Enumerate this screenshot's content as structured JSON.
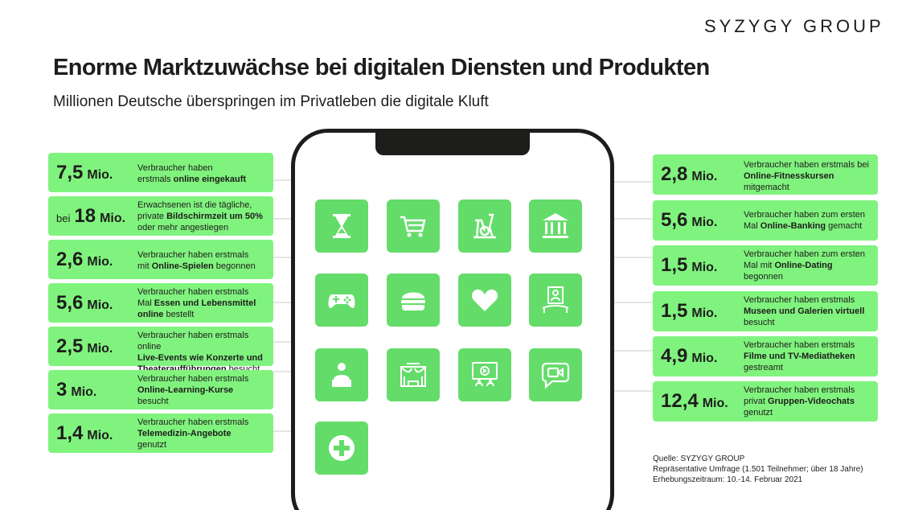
{
  "brand": "SYZYGY GROUP",
  "title": "Enorme Marktzuwächse bei digitalen Diensten und Produkten",
  "subtitle": "Millionen Deutsche überspringen im Privatleben die digitale Kluft",
  "left_cards": [
    {
      "pre": "",
      "value": "7,5",
      "unit": "Mio.",
      "desc": [
        "Verbraucher haben",
        "erstmals <b>online eingekauft</b>"
      ]
    },
    {
      "pre": "bei",
      "value": "18",
      "unit": "Mio.",
      "desc": [
        "Erwachsenen ist die tägliche,",
        "private <b>Bildschirmzeit um 50%</b>",
        "oder mehr angestiegen"
      ]
    },
    {
      "pre": "",
      "value": "2,6",
      "unit": "Mio.",
      "desc": [
        "Verbraucher haben erstmals",
        "mit <b>Online-Spielen</b> begonnen"
      ]
    },
    {
      "pre": "",
      "value": "5,6",
      "unit": "Mio.",
      "desc": [
        "Verbraucher haben erstmals",
        "Mal <b>Essen und Lebensmittel</b>",
        "<b>online</b> bestellt"
      ]
    },
    {
      "pre": "",
      "value": "2,5",
      "unit": "Mio.",
      "desc": [
        "Verbraucher haben erstmals online",
        "<b>Live-Events wie Konzerte und</b>",
        "<b>Theateraufführungen</b> besucht"
      ]
    },
    {
      "pre": "",
      "value": "3",
      "unit": "Mio.",
      "desc": [
        "Verbraucher haben erstmals",
        "<b>Online-Learning-Kurse</b>",
        "besucht"
      ]
    },
    {
      "pre": "",
      "value": "1,4",
      "unit": "Mio.",
      "desc": [
        "Verbraucher haben erstmals",
        "<b>Telemedizin-Angebote</b>",
        "genutzt"
      ]
    }
  ],
  "right_cards": [
    {
      "value": "2,8",
      "unit": "Mio.",
      "desc": [
        "Verbraucher haben erstmals bei",
        "<b>Online-Fitnesskursen</b>",
        "mitgemacht"
      ]
    },
    {
      "value": "5,6",
      "unit": "Mio.",
      "desc": [
        "Verbraucher haben zum ersten",
        "Mal <b>Online-Banking</b> gemacht"
      ]
    },
    {
      "value": "1,5",
      "unit": "Mio.",
      "desc": [
        "Verbraucher haben zum ersten",
        "Mal mit <b>Online-Dating</b>",
        "begonnen"
      ]
    },
    {
      "value": "1,5",
      "unit": "Mio.",
      "desc": [
        "Verbraucher haben erstmals",
        "<b>Museen und Galerien virtuell</b>",
        "besucht"
      ]
    },
    {
      "value": "4,9",
      "unit": "Mio.",
      "desc": [
        "Verbraucher haben erstmals",
        "<b>Filme und TV-Mediatheken</b>",
        "gestreamt"
      ]
    },
    {
      "value": "12,4",
      "unit": "Mio.",
      "desc": [
        "Verbraucher haben erstmals",
        "privat <b>Gruppen-Videochats</b>",
        "genutzt"
      ]
    }
  ],
  "icons": [
    "hourglass-icon",
    "shopping-cart-icon",
    "exercise-bike-icon",
    "bank-icon",
    "gamepad-icon",
    "burger-icon",
    "heart-icon",
    "museum-frame-icon",
    "online-learning-icon",
    "theater-icon",
    "video-stream-icon",
    "video-chat-icon",
    "medical-cross-icon"
  ],
  "source": [
    "Quelle: SYZYGY GROUP",
    "Repräsentative Umfrage (1.501 Teilnehmer; über 18 Jahre)",
    "Erhebungszeitraum: 10.-14. Februar 2021"
  ],
  "colors": {
    "card": "#80f37e",
    "tile": "#64dc6a",
    "text": "#1d1d1b"
  }
}
